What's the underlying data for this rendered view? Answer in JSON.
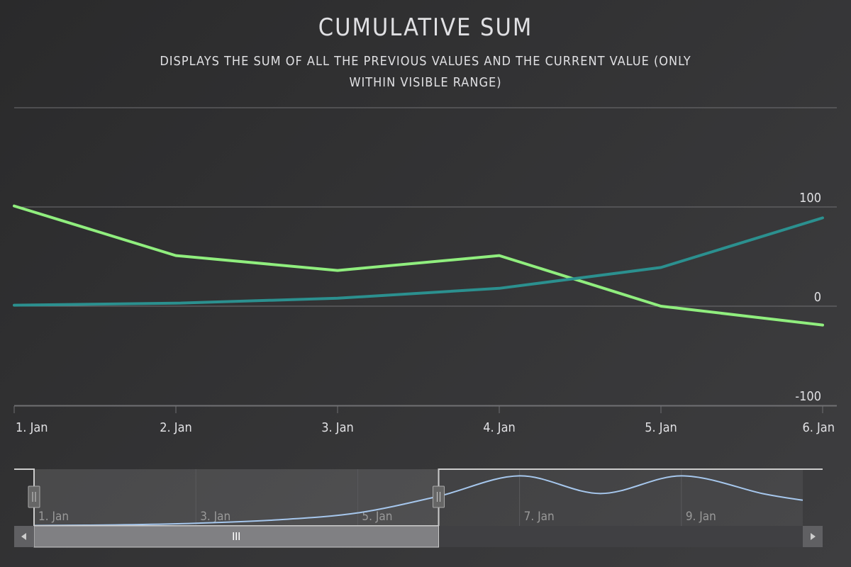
{
  "chart_data": {
    "type": "line",
    "title": "Cumulative Sum",
    "subtitle_lines": [
      "Displays the sum of all the previous values and the current value (only",
      "within visible range)"
    ],
    "categories": [
      "1. Jan",
      "2. Jan",
      "3. Jan",
      "4. Jan",
      "5. Jan",
      "6. Jan"
    ],
    "ylim": [
      -100,
      200
    ],
    "y_ticks": [
      {
        "value": 100,
        "label": "100"
      },
      {
        "value": 0,
        "label": "0"
      },
      {
        "value": -100,
        "label": "-100"
      }
    ],
    "series": [
      {
        "color": "#90ee7e",
        "values": [
          101,
          51,
          36,
          51,
          0,
          -19
        ]
      },
      {
        "color": "#2b908f",
        "values": [
          1,
          3,
          8,
          18,
          39,
          89
        ]
      }
    ],
    "grid": true,
    "navigator": {
      "labels": [
        "1. Jan",
        "3. Jan",
        "5. Jan",
        "7. Jan",
        "9. Jan"
      ],
      "label_days": [
        1,
        3,
        5,
        7,
        9
      ],
      "day_range": [
        1,
        10.5
      ],
      "selected_range": [
        1,
        6
      ],
      "series": {
        "color": "#a6c7ed",
        "days": [
          1,
          2,
          3,
          4,
          5,
          6,
          7,
          8,
          9,
          10,
          10.5
        ],
        "values": [
          1,
          3,
          8,
          18,
          39,
          89,
          150,
          97,
          150,
          97,
          77
        ],
        "ylim": [
          0,
          170
        ]
      }
    }
  }
}
